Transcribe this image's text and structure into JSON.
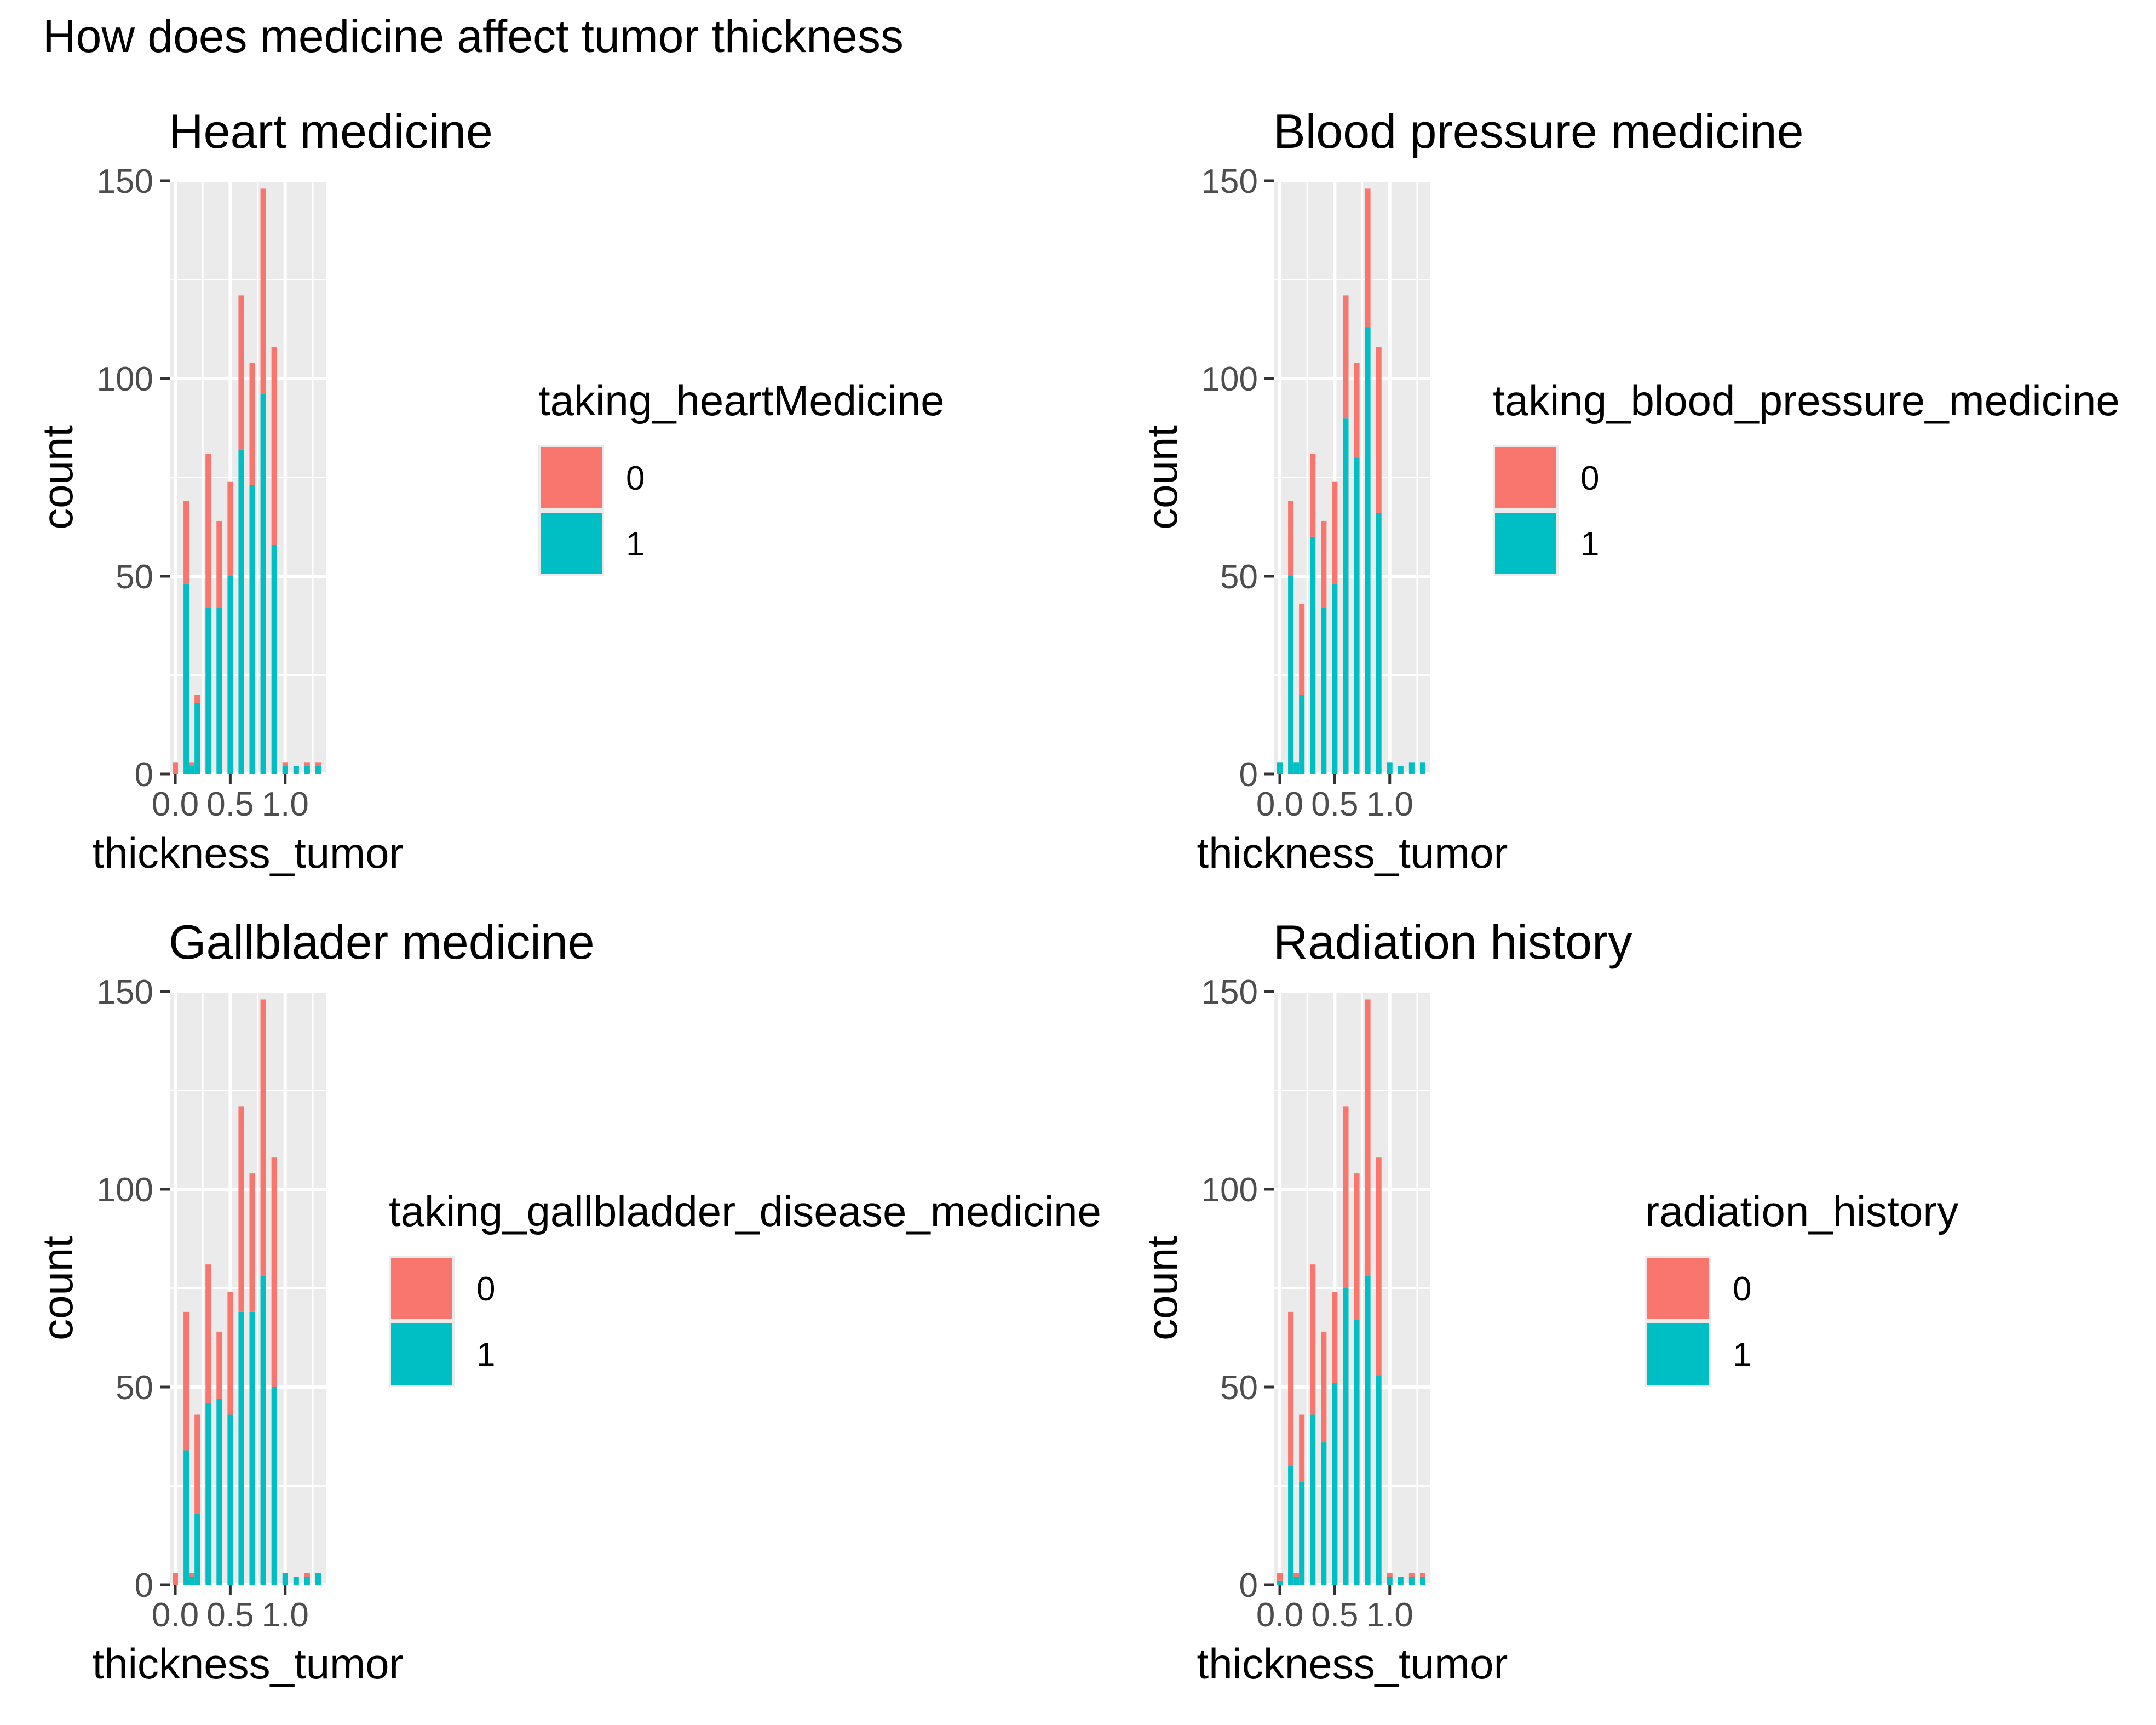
{
  "figure": {
    "title": "How does medicine affect tumor thickness"
  },
  "colors": {
    "zero": "#F8766D",
    "one": "#00BFC4",
    "panel_background": "#EBEBEB",
    "grid": "#FFFFFF",
    "tick_text": "#4D4D4D",
    "text": "#000000"
  },
  "chart_data": [
    {
      "type": "bar",
      "stacked": true,
      "title": "Heart medicine",
      "xlabel": "thickness_tumor",
      "ylabel": "count",
      "xlim": [
        -0.05,
        1.37
      ],
      "ylim": [
        0,
        150
      ],
      "x_ticks": [
        "0.0",
        "0.5",
        "1.0"
      ],
      "y_ticks": [
        "0",
        "50",
        "100",
        "150"
      ],
      "grid": true,
      "legend": {
        "title": "taking_heartMedicine",
        "entries": [
          "0",
          "1"
        ]
      },
      "bar_width": 0.05,
      "x": [
        0.0,
        0.1,
        0.15,
        0.2,
        0.3,
        0.4,
        0.5,
        0.6,
        0.7,
        0.8,
        0.9,
        1.0,
        1.1,
        1.2,
        1.3
      ],
      "series": [
        {
          "name": "0",
          "values": [
            3,
            21,
            1,
            2,
            39,
            22,
            24,
            39,
            31,
            52,
            50,
            1,
            0,
            1,
            1
          ]
        },
        {
          "name": "1",
          "values": [
            0,
            48,
            2,
            18,
            42,
            42,
            50,
            82,
            73,
            96,
            58,
            2,
            2,
            2,
            2
          ]
        }
      ]
    },
    {
      "type": "bar",
      "stacked": true,
      "title": "Blood pressure medicine",
      "xlabel": "thickness_tumor",
      "ylabel": "count",
      "xlim": [
        -0.05,
        1.37
      ],
      "ylim": [
        0,
        150
      ],
      "x_ticks": [
        "0.0",
        "0.5",
        "1.0"
      ],
      "y_ticks": [
        "0",
        "50",
        "100",
        "150"
      ],
      "grid": true,
      "legend": {
        "title": "taking_blood_pressure_medicine",
        "entries": [
          "0",
          "1"
        ]
      },
      "bar_width": 0.05,
      "x": [
        0.0,
        0.1,
        0.15,
        0.2,
        0.3,
        0.4,
        0.5,
        0.6,
        0.7,
        0.8,
        0.9,
        1.0,
        1.1,
        1.2,
        1.3
      ],
      "series": [
        {
          "name": "0",
          "values": [
            0,
            19,
            0,
            23,
            21,
            22,
            26,
            31,
            24,
            35,
            42,
            0,
            0,
            0,
            0
          ]
        },
        {
          "name": "1",
          "values": [
            3,
            50,
            3,
            20,
            60,
            42,
            48,
            90,
            80,
            113,
            66,
            3,
            2,
            3,
            3
          ]
        }
      ]
    },
    {
      "type": "bar",
      "stacked": true,
      "title": "Gallblader medicine",
      "xlabel": "thickness_tumor",
      "ylabel": "count",
      "xlim": [
        -0.05,
        1.37
      ],
      "ylim": [
        0,
        150
      ],
      "x_ticks": [
        "0.0",
        "0.5",
        "1.0"
      ],
      "y_ticks": [
        "0",
        "50",
        "100",
        "150"
      ],
      "grid": true,
      "legend": {
        "title": "taking_gallbladder_disease_medicine",
        "entries": [
          "0",
          "1"
        ]
      },
      "bar_width": 0.05,
      "x": [
        0.0,
        0.1,
        0.15,
        0.2,
        0.3,
        0.4,
        0.5,
        0.6,
        0.7,
        0.8,
        0.9,
        1.0,
        1.1,
        1.2,
        1.3
      ],
      "series": [
        {
          "name": "0",
          "values": [
            3,
            35,
            1,
            25,
            35,
            17,
            31,
            52,
            35,
            70,
            58,
            0,
            0,
            1,
            0
          ]
        },
        {
          "name": "1",
          "values": [
            0,
            34,
            2,
            18,
            46,
            47,
            43,
            69,
            69,
            78,
            50,
            3,
            2,
            2,
            3
          ]
        }
      ]
    },
    {
      "type": "bar",
      "stacked": true,
      "title": "Radiation history",
      "xlabel": "thickness_tumor",
      "ylabel": "count",
      "xlim": [
        -0.05,
        1.37
      ],
      "ylim": [
        0,
        150
      ],
      "x_ticks": [
        "0.0",
        "0.5",
        "1.0"
      ],
      "y_ticks": [
        "0",
        "50",
        "100",
        "150"
      ],
      "grid": true,
      "legend": {
        "title": "radiation_history",
        "entries": [
          "0",
          "1"
        ]
      },
      "bar_width": 0.05,
      "x": [
        0.0,
        0.1,
        0.15,
        0.2,
        0.3,
        0.4,
        0.5,
        0.6,
        0.7,
        0.8,
        0.9,
        1.0,
        1.1,
        1.2,
        1.3
      ],
      "series": [
        {
          "name": "0",
          "values": [
            2,
            39,
            1,
            17,
            38,
            28,
            23,
            46,
            37,
            70,
            55,
            1,
            0,
            1,
            1
          ]
        },
        {
          "name": "1",
          "values": [
            1,
            30,
            2,
            26,
            43,
            36,
            51,
            75,
            67,
            78,
            53,
            2,
            2,
            2,
            2
          ]
        }
      ]
    }
  ]
}
